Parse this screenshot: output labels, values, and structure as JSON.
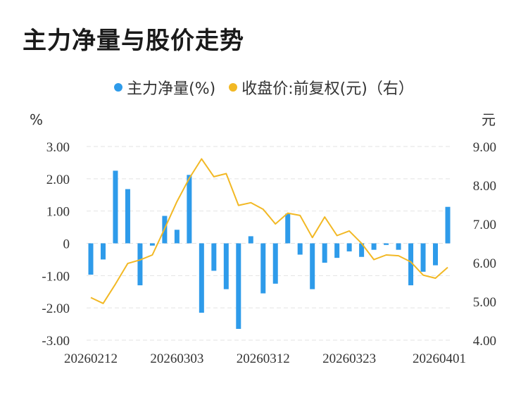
{
  "title": "主力净量与股价走势",
  "legend": [
    {
      "label": "主力净量(%)",
      "color": "#2e9bea"
    },
    {
      "label": "收盘价:前复权(元)（右）",
      "color": "#f2b824"
    }
  ],
  "chart_data": {
    "type": "bar+line",
    "y_left_unit": "%",
    "y_right_unit": "元",
    "y_left_ticks": [
      "3.00",
      "2.00",
      "1.00",
      "0",
      "-1.00",
      "-2.00",
      "-3.00"
    ],
    "y_right_ticks": [
      "9.00",
      "8.00",
      "7.00",
      "6.00",
      "5.00",
      "4.00"
    ],
    "y_left_range": [
      -3,
      3
    ],
    "y_right_range": [
      4,
      9
    ],
    "x_tick_labels": [
      {
        "label": "20260212",
        "index": 0
      },
      {
        "label": "20260303",
        "index": 7
      },
      {
        "label": "20260312",
        "index": 14
      },
      {
        "label": "20260323",
        "index": 21
      },
      {
        "label": "20260401",
        "index": 29
      }
    ],
    "series": [
      {
        "name": "主力净量(%)",
        "type": "bar",
        "color": "#2e9bea",
        "values": [
          -0.97,
          -0.5,
          2.25,
          1.68,
          -1.3,
          -0.07,
          0.85,
          0.42,
          2.12,
          -2.15,
          -0.85,
          -1.42,
          -2.65,
          0.22,
          -1.55,
          -1.25,
          0.92,
          -0.35,
          -1.42,
          -0.6,
          -0.45,
          -0.25,
          -0.42,
          -0.2,
          -0.05,
          -0.2,
          -1.3,
          -0.88,
          -0.68,
          1.13
        ]
      },
      {
        "name": "收盘价:前复权(元)（右）",
        "type": "line",
        "color": "#f2b824",
        "values": [
          5.1,
          4.95,
          5.45,
          5.98,
          6.07,
          6.2,
          6.88,
          7.58,
          8.18,
          8.68,
          8.22,
          8.3,
          7.48,
          7.55,
          7.38,
          7.0,
          7.28,
          7.22,
          6.65,
          7.18,
          6.7,
          6.82,
          6.5,
          6.08,
          6.2,
          6.18,
          6.02,
          5.68,
          5.6,
          5.88
        ]
      }
    ],
    "grid": true
  }
}
